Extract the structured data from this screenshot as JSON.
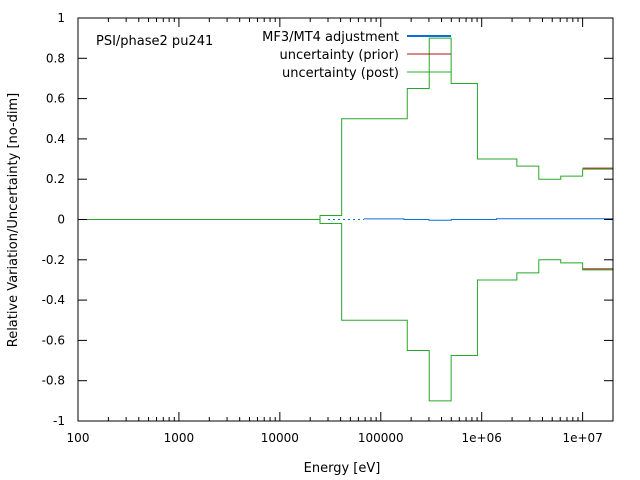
{
  "chart_data": {
    "type": "line",
    "title": "",
    "annotation": "PSI/phase2 pu241",
    "xlabel": "Energy [eV]",
    "ylabel": "Relative Variation/Uncertainty [no-dim]",
    "xscale": "log",
    "xlim": [
      100,
      20000000
    ],
    "ylim": [
      -1,
      1
    ],
    "grid": false,
    "legend_position": "top-center",
    "x_ticks": [
      {
        "value": 100,
        "label": "100"
      },
      {
        "value": 1000,
        "label": "1000"
      },
      {
        "value": 10000,
        "label": "10000"
      },
      {
        "value": 100000,
        "label": "100000"
      },
      {
        "value": 1000000,
        "label": "1e+06"
      },
      {
        "value": 10000000,
        "label": "1e+07"
      }
    ],
    "y_ticks": [
      {
        "value": 1,
        "label": "1"
      },
      {
        "value": 0.8,
        "label": "0.8"
      },
      {
        "value": 0.6,
        "label": "0.6"
      },
      {
        "value": 0.4,
        "label": "0.4"
      },
      {
        "value": 0.2,
        "label": "0.2"
      },
      {
        "value": 0,
        "label": "0"
      },
      {
        "value": -0.2,
        "label": "-0.2"
      },
      {
        "value": -0.4,
        "label": "-0.4"
      },
      {
        "value": -0.6,
        "label": "-0.6"
      },
      {
        "value": -0.8,
        "label": "-0.8"
      },
      {
        "value": -1,
        "label": "-1"
      }
    ],
    "series": [
      {
        "name": "MF3/MT4 adjustment",
        "color": "#0b6fd6",
        "style": "solid",
        "points": [
          [
            68000,
            0.003
          ],
          [
            170000,
            0.003
          ],
          [
            170000,
            0.0
          ],
          [
            300000,
            0.0
          ],
          [
            300000,
            -0.004
          ],
          [
            500000,
            -0.004
          ],
          [
            500000,
            0.0
          ],
          [
            1400000,
            0.0
          ],
          [
            1400000,
            0.004
          ],
          [
            20000000,
            0.004
          ]
        ]
      },
      {
        "name": "MF3/MT4 adjustment (dotted)",
        "color": "#0b6fd6",
        "style": "dotted",
        "points": [
          [
            30000,
            0.0
          ],
          [
            68000,
            0.0
          ]
        ]
      },
      {
        "name": "uncertainty (prior)",
        "color": "#b01010",
        "style": "solid",
        "points": [
          [
            10000000,
            0.255
          ],
          [
            20000000,
            0.255
          ]
        ]
      },
      {
        "name": "uncertainty (prior) lower",
        "color": "#b01010",
        "style": "solid",
        "points": [
          [
            10000000,
            -0.245
          ],
          [
            20000000,
            -0.245
          ]
        ]
      },
      {
        "name": "uncertainty (post)",
        "color": "#27a827",
        "style": "solid",
        "points": [
          [
            100,
            0.0
          ],
          [
            25000,
            0.0
          ],
          [
            25000,
            0.02
          ],
          [
            41000,
            0.02
          ],
          [
            41000,
            0.5
          ],
          [
            183000,
            0.5
          ],
          [
            183000,
            0.65
          ],
          [
            302000,
            0.65
          ],
          [
            302000,
            0.9
          ],
          [
            498000,
            0.9
          ],
          [
            498000,
            0.675
          ],
          [
            907000,
            0.675
          ],
          [
            907000,
            0.3
          ],
          [
            2230000,
            0.3
          ],
          [
            2230000,
            0.265
          ],
          [
            3680000,
            0.265
          ],
          [
            3680000,
            0.2
          ],
          [
            6070000,
            0.2
          ],
          [
            6070000,
            0.215
          ],
          [
            10000000,
            0.215
          ],
          [
            10000000,
            0.25
          ],
          [
            20000000,
            0.25
          ]
        ]
      },
      {
        "name": "uncertainty (post) lower",
        "color": "#27a827",
        "style": "solid",
        "points": [
          [
            100,
            0.0
          ],
          [
            25000,
            0.0
          ],
          [
            25000,
            -0.02
          ],
          [
            41000,
            -0.02
          ],
          [
            41000,
            -0.5
          ],
          [
            183000,
            -0.5
          ],
          [
            183000,
            -0.65
          ],
          [
            302000,
            -0.65
          ],
          [
            302000,
            -0.9
          ],
          [
            498000,
            -0.9
          ],
          [
            498000,
            -0.675
          ],
          [
            907000,
            -0.675
          ],
          [
            907000,
            -0.3
          ],
          [
            2230000,
            -0.3
          ],
          [
            2230000,
            -0.265
          ],
          [
            3680000,
            -0.265
          ],
          [
            3680000,
            -0.2
          ],
          [
            6070000,
            -0.2
          ],
          [
            6070000,
            -0.215
          ],
          [
            10000000,
            -0.215
          ],
          [
            10000000,
            -0.25
          ],
          [
            20000000,
            -0.25
          ]
        ]
      }
    ],
    "legend": [
      {
        "label": "MF3/MT4 adjustment",
        "color": "#0b6fd6"
      },
      {
        "label": "uncertainty (prior)",
        "color": "#b01010"
      },
      {
        "label": "uncertainty (post)",
        "color": "#27a827"
      }
    ]
  }
}
